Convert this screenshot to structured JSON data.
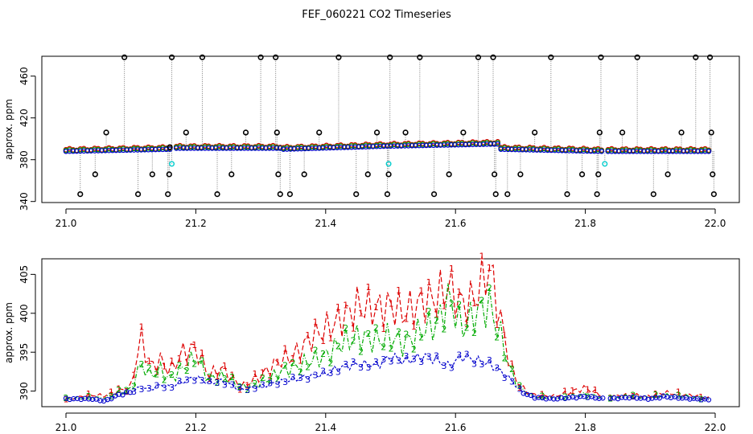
{
  "title": "FEF_060221  CO2 Timeseries",
  "chart_data": [
    {
      "type": "scatter",
      "title": "",
      "xlabel": "",
      "ylabel": "approx. ppm",
      "xlim": [
        21.0,
        22.0
      ],
      "ylim": [
        339,
        479
      ],
      "x_ticks": [
        "21.0",
        "21.2",
        "21.4",
        "21.6",
        "21.8",
        "22.0"
      ],
      "y_ticks": [
        "340",
        "380",
        "420",
        "460"
      ],
      "y_tick_values": [
        340,
        380,
        420,
        460
      ],
      "baseline_segments": [
        {
          "from": 21.0,
          "to": 21.16,
          "start": 388,
          "end": 390
        },
        {
          "from": 21.17,
          "to": 21.33,
          "start": 391,
          "end": 391
        },
        {
          "from": 21.335,
          "to": 21.495,
          "start": 390,
          "end": 393
        },
        {
          "from": 21.5,
          "to": 21.665,
          "start": 393,
          "end": 395
        },
        {
          "from": 21.67,
          "to": 21.825,
          "start": 390,
          "end": 388
        },
        {
          "from": 21.835,
          "to": 21.99,
          "start": 388,
          "end": 388
        }
      ],
      "spike_values": [
        {
          "x": 21.022,
          "y": 347
        },
        {
          "x": 21.045,
          "y": 366
        },
        {
          "x": 21.062,
          "y": 406
        },
        {
          "x": 21.09,
          "y": 478
        },
        {
          "x": 21.111,
          "y": 347
        },
        {
          "x": 21.133,
          "y": 366
        },
        {
          "x": 21.157,
          "y": 347
        },
        {
          "x": 21.159,
          "y": 366
        },
        {
          "x": 21.16,
          "y": 392
        },
        {
          "x": 21.163,
          "y": 478
        },
        {
          "x": 21.185,
          "y": 406
        },
        {
          "x": 21.21,
          "y": 478
        },
        {
          "x": 21.233,
          "y": 347
        },
        {
          "x": 21.255,
          "y": 366
        },
        {
          "x": 21.277,
          "y": 406
        },
        {
          "x": 21.3,
          "y": 478
        },
        {
          "x": 21.323,
          "y": 478
        },
        {
          "x": 21.325,
          "y": 406
        },
        {
          "x": 21.327,
          "y": 366
        },
        {
          "x": 21.33,
          "y": 347
        },
        {
          "x": 21.345,
          "y": 347
        },
        {
          "x": 21.367,
          "y": 366
        },
        {
          "x": 21.39,
          "y": 406
        },
        {
          "x": 21.42,
          "y": 478
        },
        {
          "x": 21.447,
          "y": 347
        },
        {
          "x": 21.465,
          "y": 366
        },
        {
          "x": 21.479,
          "y": 406
        },
        {
          "x": 21.495,
          "y": 347
        },
        {
          "x": 21.497,
          "y": 366
        },
        {
          "x": 21.499,
          "y": 478
        },
        {
          "x": 21.523,
          "y": 406
        },
        {
          "x": 21.545,
          "y": 478
        },
        {
          "x": 21.567,
          "y": 347
        },
        {
          "x": 21.59,
          "y": 366
        },
        {
          "x": 21.612,
          "y": 406
        },
        {
          "x": 21.635,
          "y": 478
        },
        {
          "x": 21.658,
          "y": 478
        },
        {
          "x": 21.66,
          "y": 366
        },
        {
          "x": 21.662,
          "y": 347
        },
        {
          "x": 21.68,
          "y": 347
        },
        {
          "x": 21.7,
          "y": 366
        },
        {
          "x": 21.722,
          "y": 406
        },
        {
          "x": 21.747,
          "y": 478
        },
        {
          "x": 21.772,
          "y": 347
        },
        {
          "x": 21.795,
          "y": 366
        },
        {
          "x": 21.818,
          "y": 347
        },
        {
          "x": 21.82,
          "y": 366
        },
        {
          "x": 21.822,
          "y": 406
        },
        {
          "x": 21.824,
          "y": 478
        },
        {
          "x": 21.857,
          "y": 406
        },
        {
          "x": 21.88,
          "y": 478
        },
        {
          "x": 21.905,
          "y": 347
        },
        {
          "x": 21.927,
          "y": 366
        },
        {
          "x": 21.948,
          "y": 406
        },
        {
          "x": 21.97,
          "y": 478
        },
        {
          "x": 21.992,
          "y": 478
        },
        {
          "x": 21.994,
          "y": 406
        },
        {
          "x": 21.996,
          "y": 366
        },
        {
          "x": 21.998,
          "y": 347
        }
      ],
      "cyan_points": [
        {
          "x": 21.163,
          "y": 376
        },
        {
          "x": 21.497,
          "y": 376
        },
        {
          "x": 21.83,
          "y": 376
        }
      ]
    },
    {
      "type": "line",
      "title": "",
      "xlabel": "",
      "ylabel": "approx. ppm",
      "xlim": [
        21.0,
        22.0
      ],
      "ylim": [
        388,
        407
      ],
      "x_ticks": [
        "21.0",
        "21.2",
        "21.4",
        "21.6",
        "21.8",
        "22.0"
      ],
      "y_ticks": [
        "390",
        "395",
        "400",
        "405"
      ],
      "y_tick_values": [
        390,
        395,
        400,
        405
      ],
      "gaps": [
        [
          21.83,
          21.835
        ]
      ],
      "series": [
        {
          "name": "1",
          "color": "#dd0000",
          "marker": "1",
          "x": [
            21.0,
            21.04,
            21.06,
            21.08,
            21.1,
            21.115,
            21.13,
            21.145,
            21.16,
            21.18,
            21.2,
            21.22,
            21.24,
            21.27,
            21.3,
            21.33,
            21.35,
            21.38,
            21.4,
            21.42,
            21.45,
            21.48,
            21.5,
            21.52,
            21.55,
            21.57,
            21.59,
            21.61,
            21.63,
            21.652,
            21.67,
            21.685,
            21.7,
            21.72,
            21.75,
            21.8,
            21.83,
            21.87,
            21.9,
            21.92,
            21.95,
            21.99
          ],
          "values": [
            389,
            389.5,
            389.4,
            390,
            390.5,
            397,
            393,
            394,
            392.5,
            395,
            395.5,
            392,
            393,
            390.5,
            392,
            394,
            394.5,
            397,
            398,
            399,
            401,
            400.5,
            401,
            400,
            401.5,
            402,
            403.5,
            401,
            402,
            406,
            399,
            393,
            390.5,
            389.5,
            389.3,
            390.4,
            389.3,
            389.5,
            389.3,
            389.8,
            389.6,
            389.1
          ]
        },
        {
          "name": "2",
          "color": "#00aa00",
          "marker": "2",
          "x": [
            21.0,
            21.04,
            21.06,
            21.08,
            21.1,
            21.115,
            21.13,
            21.145,
            21.16,
            21.18,
            21.2,
            21.22,
            21.24,
            21.27,
            21.3,
            21.33,
            21.35,
            21.38,
            21.4,
            21.42,
            21.45,
            21.48,
            21.5,
            21.52,
            21.55,
            21.57,
            21.59,
            21.61,
            21.63,
            21.652,
            21.67,
            21.685,
            21.7,
            21.72,
            21.75,
            21.8,
            21.83,
            21.87,
            21.9,
            21.92,
            21.95,
            21.99
          ],
          "values": [
            389,
            389.2,
            389.1,
            389.8,
            390.2,
            393.5,
            392,
            392.8,
            391.5,
            393,
            394.5,
            391.5,
            392,
            390.5,
            391,
            392.5,
            393,
            394,
            394.5,
            396,
            397,
            396.5,
            397,
            396,
            398,
            398.5,
            402,
            398,
            400,
            401,
            397,
            392.5,
            390.3,
            389.3,
            389.1,
            389.6,
            389.2,
            389.4,
            389.2,
            389.5,
            389.4,
            389
          ]
        },
        {
          "name": "3",
          "color": "#0000cc",
          "marker": "3",
          "x": [
            21.0,
            21.04,
            21.06,
            21.08,
            21.1,
            21.115,
            21.13,
            21.145,
            21.16,
            21.18,
            21.2,
            21.22,
            21.24,
            21.27,
            21.3,
            21.33,
            21.35,
            21.38,
            21.4,
            21.42,
            21.45,
            21.48,
            21.5,
            21.52,
            21.55,
            21.57,
            21.59,
            21.61,
            21.63,
            21.652,
            21.67,
            21.685,
            21.7,
            21.72,
            21.75,
            21.8,
            21.83,
            21.87,
            21.9,
            21.92,
            21.95,
            21.99
          ],
          "values": [
            389,
            389,
            388.7,
            389.5,
            389.9,
            390.5,
            390.2,
            390.8,
            390.5,
            391.2,
            391.8,
            391,
            391.3,
            390.2,
            390.6,
            391.2,
            391.5,
            392,
            392.2,
            393,
            393.5,
            393.3,
            394.5,
            393.8,
            394.5,
            394,
            393.2,
            394.5,
            394,
            393.5,
            392.5,
            391.5,
            390,
            389.2,
            389,
            389.3,
            389,
            389.2,
            389,
            389.3,
            389.1,
            388.9
          ]
        }
      ]
    }
  ]
}
